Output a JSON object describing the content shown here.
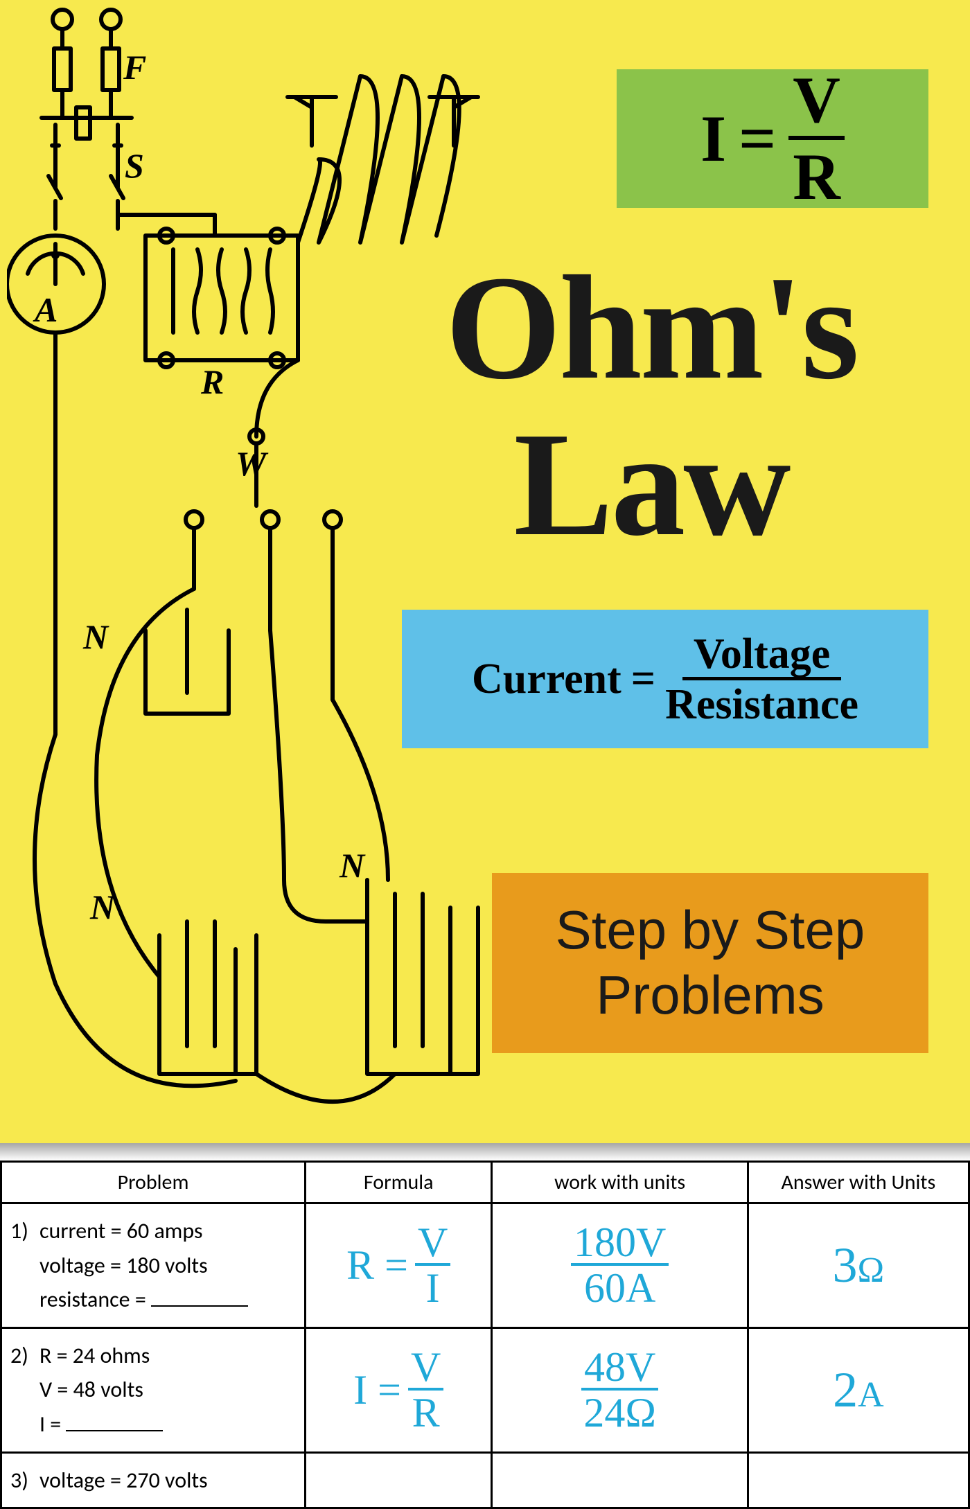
{
  "poster": {
    "background_color": "#f7e94e",
    "formula": {
      "bg": "#8bc34a",
      "lhs": "I",
      "equals": "=",
      "num": "V",
      "den": "R",
      "font_size": 95
    },
    "title_line1": "Ohm's",
    "title_line2": "Law",
    "title_color": "#1a1a1a",
    "title_fontsize": 215,
    "words": {
      "bg": "#5fc0e8",
      "lhs": "Current",
      "equals": "=",
      "num": "Voltage",
      "den": "Resistance",
      "font_size": 62
    },
    "step": {
      "bg": "#e89b1c",
      "line1": "Step by Step",
      "line2": "Problems",
      "font_size": 78
    },
    "diagram_labels": {
      "F": "F",
      "S": "S",
      "A": "A",
      "R": "R",
      "W": "W",
      "N": "N"
    }
  },
  "worksheet": {
    "headers": [
      "Problem",
      "Formula",
      "work with units",
      "Answer with Units"
    ],
    "hand_color": "#1fa8d8",
    "rows": [
      {
        "n": "1)",
        "lines": [
          "current =  60 amps",
          "voltage =  180 volts",
          "resistance ="
        ],
        "blank_on": 2,
        "formula_lhs": "R",
        "formula_num": "V",
        "formula_den": "I",
        "work_num": "180V",
        "work_den": "60A",
        "answer_val": "3",
        "answer_unit": "Ω"
      },
      {
        "n": "2)",
        "lines": [
          "R =  24 ohms",
          "V  =  48 volts",
          "I  ="
        ],
        "blank_on": 2,
        "formula_lhs": "I",
        "formula_num": "V",
        "formula_den": "R",
        "work_num": "48V",
        "work_den": "24Ω",
        "answer_val": "2",
        "answer_unit": "A"
      },
      {
        "n": "3)",
        "lines": [
          "voltage =  270 volts"
        ],
        "blank_on": -1,
        "formula_lhs": "",
        "formula_num": "",
        "formula_den": "",
        "work_num": "",
        "work_den": "",
        "answer_val": "",
        "answer_unit": ""
      }
    ]
  }
}
